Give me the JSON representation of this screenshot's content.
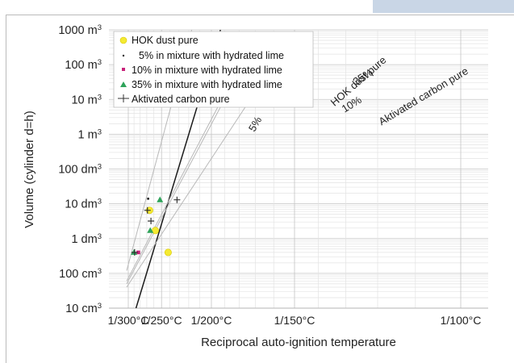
{
  "chart_data": {
    "type": "scatter",
    "title": "",
    "xlabel": "Reciprocal auto-ignition temperature",
    "ylabel": "Volume (cylinder d=h)",
    "x_scale": "reciprocal",
    "y_scale": "log",
    "x_unit": "°C",
    "xlim": [
      300,
      95
    ],
    "ylim": [
      "10 cm³",
      "1000 m³"
    ],
    "x_ticks": [
      300,
      250,
      200,
      150,
      100
    ],
    "x_tick_labels": [
      "1/300°C",
      "1/250°C",
      "1/200°C",
      "1/150°C",
      "1/100°C"
    ],
    "y_ticks": [
      "10 cm³",
      "100 cm³",
      "1 dm³",
      "10 dm³",
      "100 dm³",
      "1 m³",
      "10 m³",
      "100 m³",
      "1000 m³"
    ],
    "y_tick_labels": [
      "10 cm3",
      "100 cm3",
      "1 dm3",
      "10 dm3",
      "100 dm3",
      "1 m3",
      "10 m3",
      "100 m3",
      "1000 m3"
    ],
    "y_tick_values_m3": [
      1e-05,
      0.0001,
      0.001,
      0.01,
      0.1,
      1,
      10,
      100,
      1000
    ],
    "grid": true,
    "legend_position": "top-left",
    "legend": [
      "HOK dust pure",
      "5%  in mixture with hydrated lime",
      "10%  in mixture with hydrated lime",
      "35%  in mixture with hydrated lime",
      "Aktivated carbon pure"
    ],
    "series": [
      {
        "name": "HOK dust pure",
        "marker": "circle",
        "color": "#f4ea32",
        "points": [
          [
            242,
            0.0004
          ],
          [
            258,
            0.0017
          ],
          [
            266,
            0.0065
          ]
        ],
        "fit_label": "HOK dust pure",
        "fit": [
          [
            290,
            6.5e-06
          ],
          [
            193,
            1000
          ]
        ]
      },
      {
        "name": "5%  in mixture with hydrated lime",
        "marker": "dot",
        "color": "#222222",
        "points": [
          [
            268,
            0.014
          ]
        ],
        "fit_label": "5%",
        "fit": [
          [
            303,
            0.00012
          ],
          [
            213,
            3000
          ]
        ]
      },
      {
        "name": "10%  in mixture with hydrated lime",
        "marker": "square",
        "color": "#c8227a",
        "points": [
          [
            283,
            0.0004
          ]
        ],
        "fit_label": "10%",
        "fit": [
          [
            303,
            6e-05
          ],
          [
            192,
            10
          ]
        ]
      },
      {
        "name": "35%  in mixture with hydrated lime",
        "marker": "triangle",
        "color": "#2ea35a",
        "points": [
          [
            290,
            0.0004
          ],
          [
            265,
            0.0017
          ],
          [
            252,
            0.013
          ]
        ],
        "fit_label": "35%",
        "fit": [
          [
            303,
            5e-05
          ],
          [
            190,
            10
          ]
        ]
      },
      {
        "name": "Aktivated carbon pure",
        "marker": "plus",
        "color": "#333333",
        "points": [
          [
            289,
            0.0004
          ],
          [
            264,
            0.0032
          ],
          [
            269,
            0.0065
          ],
          [
            232,
            0.013
          ]
        ],
        "fit_label": "Aktivated carbon pure",
        "fit": [
          [
            303,
            4e-05
          ],
          [
            173,
            10
          ]
        ]
      }
    ]
  }
}
